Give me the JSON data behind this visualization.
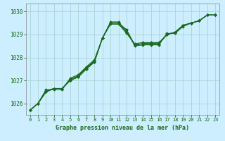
{
  "title": "Graphe pression niveau de la mer (hPa)",
  "background_color": "#cceeff",
  "line_color": "#1a6b1a",
  "grid_color": "#aad4d4",
  "xlim": [
    -0.5,
    23.5
  ],
  "ylim": [
    1025.5,
    1030.35
  ],
  "yticks": [
    1026,
    1027,
    1028,
    1029,
    1030
  ],
  "xticks": [
    0,
    1,
    2,
    3,
    4,
    5,
    6,
    7,
    8,
    9,
    10,
    11,
    12,
    13,
    14,
    15,
    16,
    17,
    18,
    19,
    20,
    21,
    22,
    23
  ],
  "series": [
    [
      1025.7,
      1026.0,
      1026.5,
      1026.65,
      1026.65,
      1027.0,
      1027.15,
      1027.5,
      1027.8,
      1028.85,
      1029.55,
      1029.55,
      1029.1,
      1028.55,
      1028.6,
      1028.6,
      1028.6,
      1029.0,
      1029.1,
      1029.4,
      1029.5,
      1029.6,
      1029.85,
      1029.85
    ],
    [
      1025.7,
      1026.0,
      1026.5,
      1026.65,
      1026.65,
      1027.0,
      1027.15,
      1027.5,
      1027.8,
      1028.85,
      1029.5,
      1029.5,
      1029.2,
      1028.5,
      1028.55,
      1028.55,
      1028.55,
      1029.05,
      1029.05,
      1029.35,
      1029.5,
      1029.6,
      1029.85,
      1029.85
    ],
    [
      1025.7,
      1026.0,
      1026.55,
      1026.65,
      1026.65,
      1027.05,
      1027.2,
      1027.55,
      1027.85,
      1028.85,
      1029.5,
      1029.5,
      1029.2,
      1028.55,
      1028.6,
      1028.6,
      1028.6,
      1029.0,
      1029.1,
      1029.4,
      1029.5,
      1029.6,
      1029.85,
      1029.85
    ],
    [
      1025.7,
      1026.0,
      1026.55,
      1026.65,
      1026.65,
      1027.05,
      1027.2,
      1027.55,
      1027.85,
      1028.85,
      1029.5,
      1029.5,
      1029.1,
      1028.55,
      1028.6,
      1028.6,
      1028.6,
      1029.0,
      1029.1,
      1029.4,
      1029.5,
      1029.6,
      1029.85,
      1029.85
    ],
    [
      1025.7,
      1026.0,
      1026.6,
      1026.6,
      1026.6,
      1027.1,
      1027.25,
      1027.6,
      1027.9,
      1028.85,
      1029.45,
      1029.45,
      1029.05,
      1028.6,
      1028.65,
      1028.65,
      1028.65,
      1029.0,
      1029.1,
      1029.4,
      1029.5,
      1029.6,
      1029.85,
      1029.85
    ]
  ]
}
